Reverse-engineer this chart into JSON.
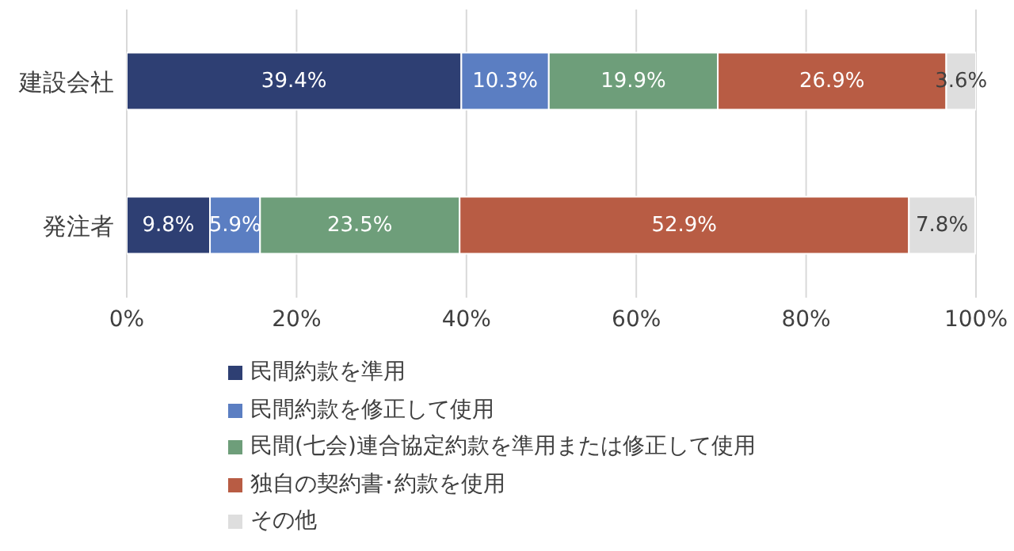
{
  "chart_data": {
    "type": "bar",
    "orientation": "horizontal",
    "stacked": true,
    "categories": [
      "建設会社",
      "発注者"
    ],
    "series": [
      {
        "name": "民間約款を準用",
        "color": "#2e3f73",
        "values": [
          39.4,
          9.8
        ],
        "value_labels": [
          "39.4%",
          "9.8%"
        ]
      },
      {
        "name": "民間約款を修正して使用",
        "color": "#5b7ec2",
        "values": [
          10.3,
          5.9
        ],
        "value_labels": [
          "10.3%",
          "5.9%"
        ]
      },
      {
        "name": "民間(七会)連合協定約款を準用または修正して使用",
        "color": "#6e9e7a",
        "values": [
          19.9,
          23.5
        ],
        "value_labels": [
          "19.9%",
          "23.5%"
        ]
      },
      {
        "name": "独自の契約書･約款を使用",
        "color": "#b85c44",
        "values": [
          26.9,
          52.9
        ],
        "value_labels": [
          "26.9%",
          "52.9%"
        ]
      },
      {
        "name": "その他",
        "color": "#dedede",
        "values": [
          3.6,
          7.8
        ],
        "value_labels": [
          "3.6%",
          "7.8%"
        ]
      }
    ],
    "xlim": [
      0,
      100
    ],
    "xticks": [
      {
        "value": 0,
        "label": "0%"
      },
      {
        "value": 20,
        "label": "20%"
      },
      {
        "value": 40,
        "label": "40%"
      },
      {
        "value": 60,
        "label": "60%"
      },
      {
        "value": 80,
        "label": "80%"
      },
      {
        "value": 100,
        "label": "100%"
      }
    ],
    "grid": "x",
    "legend": "bottom"
  }
}
